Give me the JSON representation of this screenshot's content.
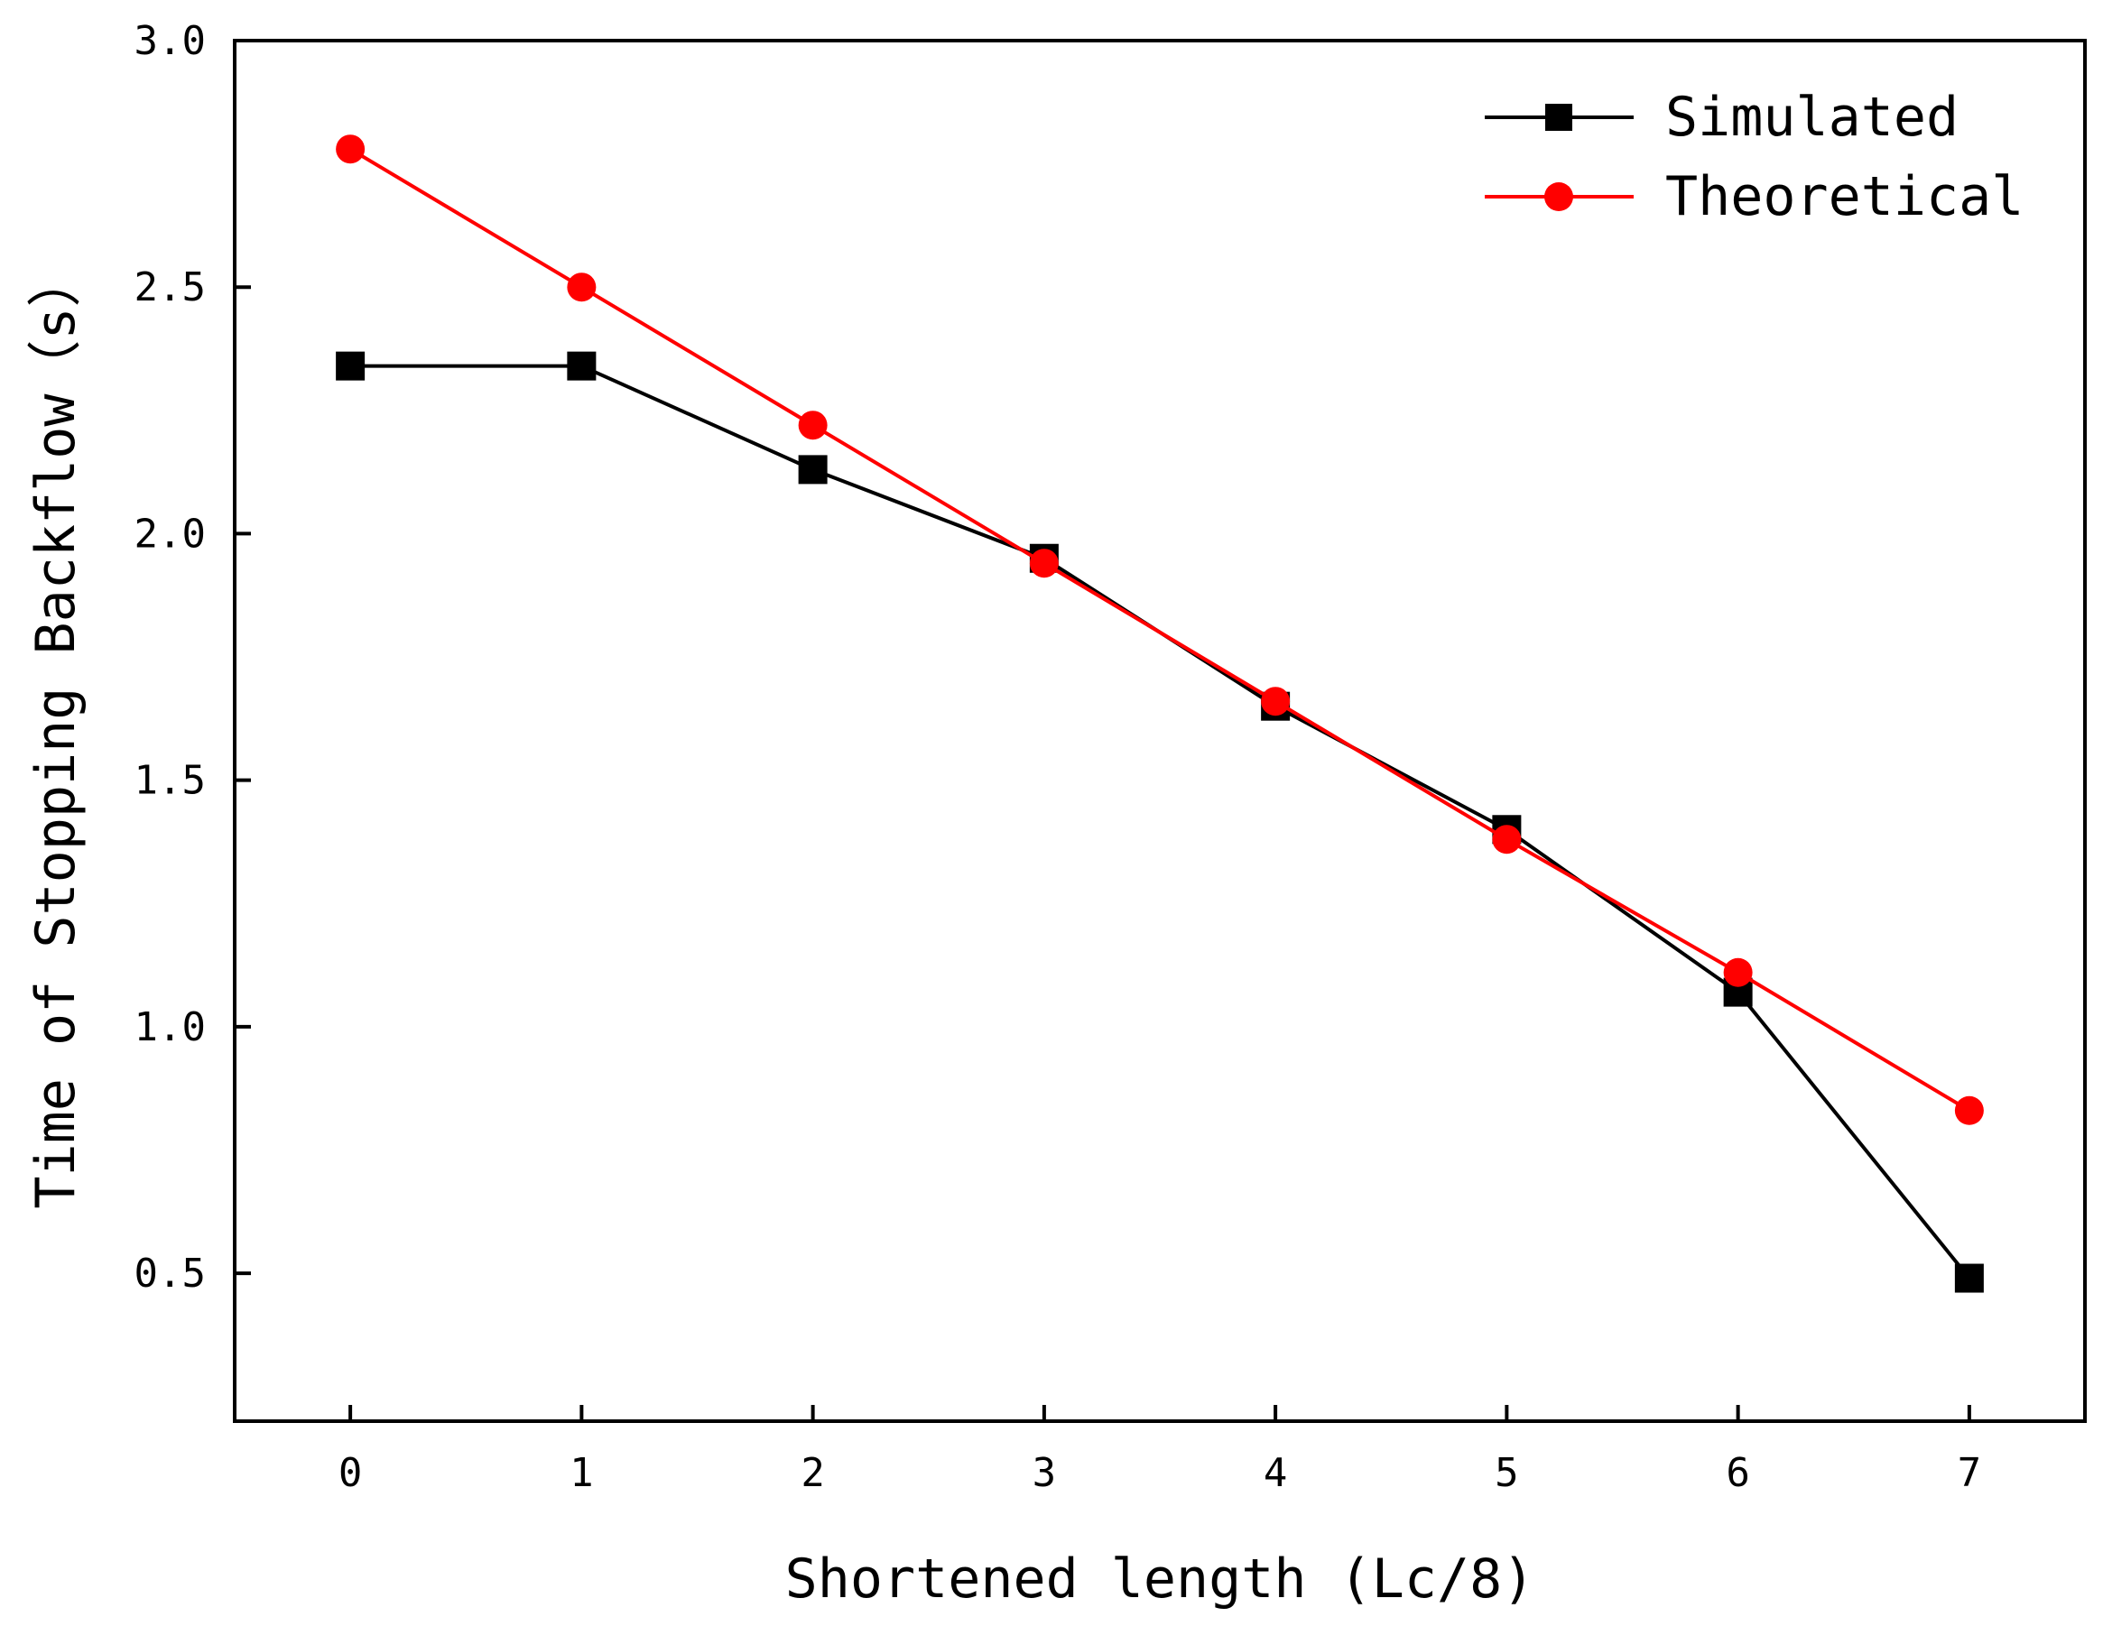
{
  "chart_data": {
    "type": "line",
    "title": "",
    "xlabel": "Shortened length (Lc/8)",
    "ylabel": "Time of Stopping Backflow（s）",
    "xlim": [
      -0.5,
      7.5
    ],
    "ylim": [
      0.2,
      3.0
    ],
    "x_ticks": [
      0,
      1,
      2,
      3,
      4,
      5,
      6,
      7
    ],
    "x_tick_labels": [
      "0",
      "1",
      "2",
      "3",
      "4",
      "5",
      "6",
      "7"
    ],
    "y_ticks": [
      0.5,
      1.0,
      1.5,
      2.0,
      2.5,
      3.0
    ],
    "y_tick_labels": [
      "0.5",
      "1.0",
      "1.5",
      "2.0",
      "2.5",
      "3.0"
    ],
    "grid": false,
    "legend_position": "top-right",
    "series": [
      {
        "name": "Simulated",
        "color": "#000000",
        "marker": "square",
        "x": [
          0,
          1,
          2,
          3,
          4,
          5,
          6,
          7
        ],
        "values": [
          2.34,
          2.34,
          2.13,
          1.95,
          1.65,
          1.4,
          1.07,
          0.49
        ]
      },
      {
        "name": "Theoretical",
        "color": "#ff0000",
        "marker": "circle",
        "x": [
          0,
          1,
          2,
          3,
          4,
          5,
          6,
          7
        ],
        "values": [
          2.78,
          2.5,
          2.22,
          1.94,
          1.66,
          1.38,
          1.11,
          0.83
        ]
      }
    ]
  }
}
